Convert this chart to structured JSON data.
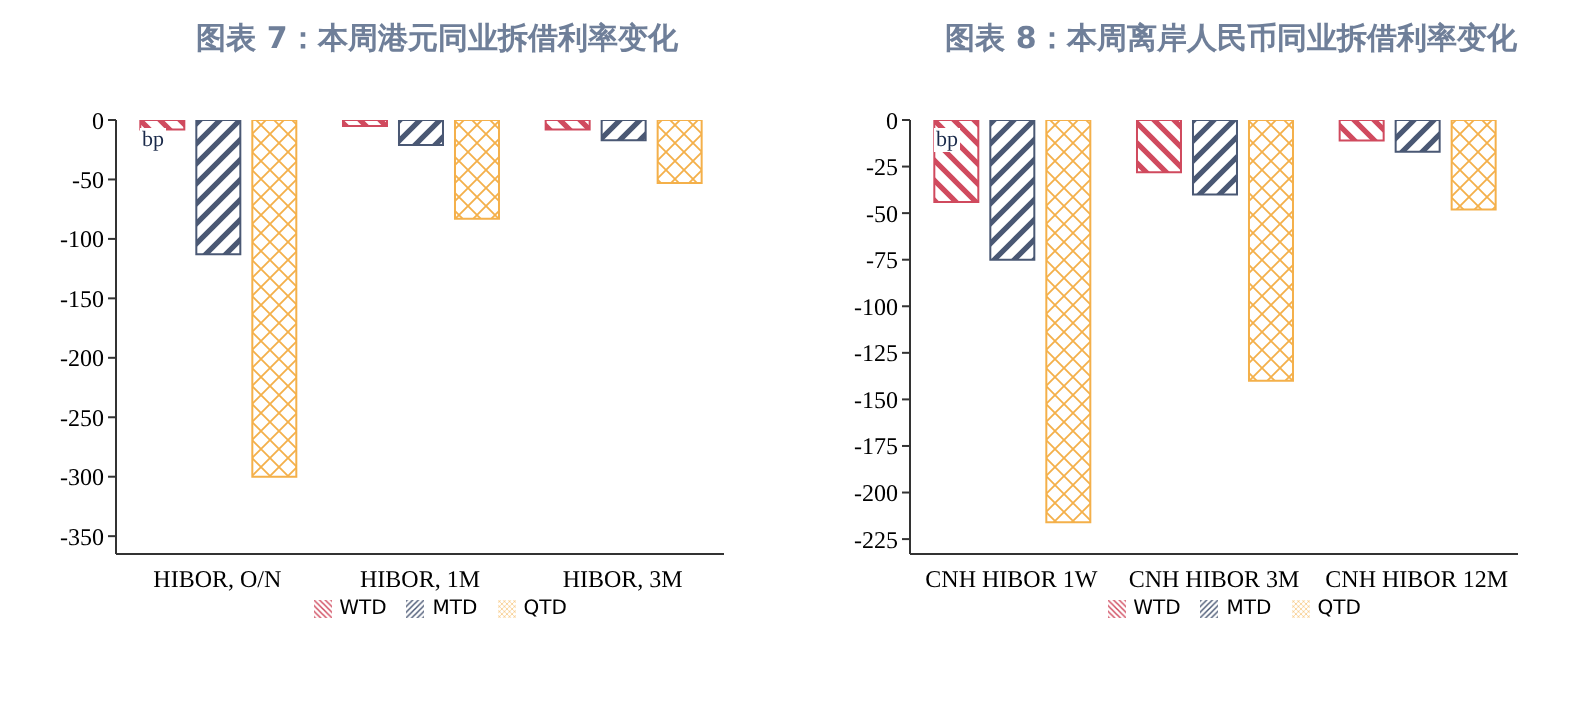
{
  "chart_data": [
    {
      "type": "bar",
      "title": "图表 7：本周港元同业拆借利率变化",
      "categories": [
        "HIBOR, O/N",
        "HIBOR, 1M",
        "HIBOR, 3M"
      ],
      "series": [
        {
          "name": "WTD",
          "color": "#d04a5e",
          "values": [
            -8,
            -5,
            -8
          ]
        },
        {
          "name": "MTD",
          "color": "#4a5874",
          "values": [
            -113,
            -21,
            -17
          ]
        },
        {
          "name": "QTD",
          "color": "#f4b04a",
          "values": [
            -300,
            -83,
            -53
          ]
        }
      ],
      "ylim": [
        -365,
        0
      ],
      "yticks": [
        0,
        -50,
        -100,
        -150,
        -200,
        -250,
        -300,
        -350
      ],
      "grid": false,
      "legend": "bottom",
      "annotations": [
        "bp"
      ]
    },
    {
      "type": "bar",
      "title": "图表 8：本周离岸人民币同业拆借利率变化",
      "categories": [
        "CNH HIBOR 1W",
        "CNH HIBOR 3M",
        "CNH HIBOR 12M"
      ],
      "series": [
        {
          "name": "WTD",
          "color": "#d04a5e",
          "values": [
            -44,
            -28,
            -11
          ]
        },
        {
          "name": "MTD",
          "color": "#4a5874",
          "values": [
            -75,
            -40,
            -17
          ]
        },
        {
          "name": "QTD",
          "color": "#f4b04a",
          "values": [
            -216,
            -140,
            -48
          ]
        }
      ],
      "ylim": [
        -233,
        0
      ],
      "yticks": [
        0,
        -25,
        -50,
        -75,
        -100,
        -125,
        -150,
        -175,
        -200,
        -225
      ],
      "grid": false,
      "legend": "bottom",
      "annotations": [
        "bp"
      ]
    }
  ]
}
